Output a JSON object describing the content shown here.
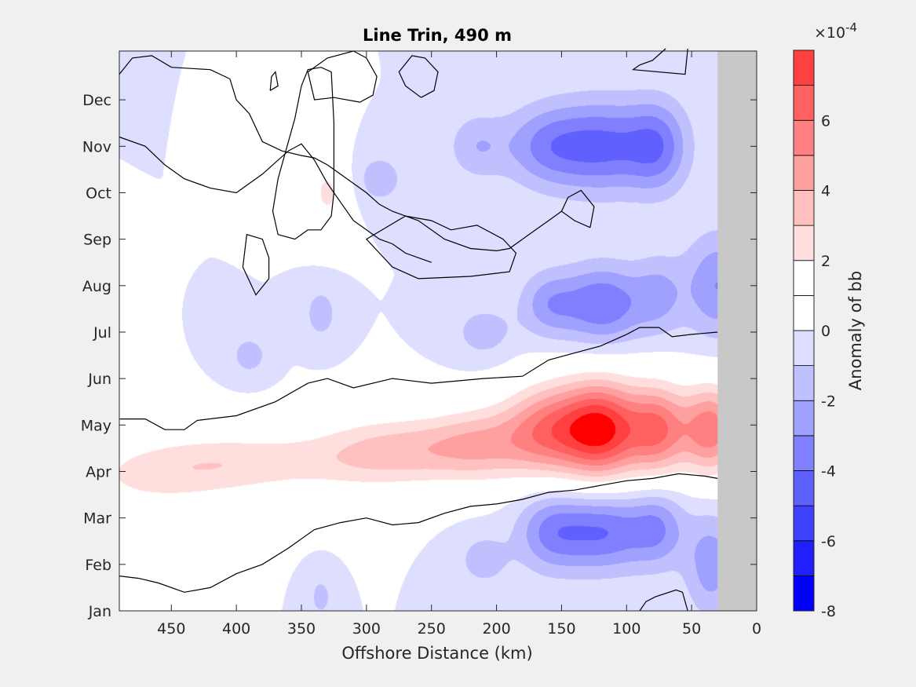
{
  "chart_data": {
    "type": "heatmap",
    "title": "Line Trin, 490 m",
    "xlabel": "Offshore Distance (km)",
    "ylabel": "",
    "xlim": [
      490,
      0
    ],
    "x_reversed": true,
    "x_ticks": [
      450,
      400,
      350,
      300,
      250,
      200,
      150,
      100,
      50,
      0
    ],
    "y_categories": [
      "Jan",
      "Feb",
      "Mar",
      "Apr",
      "May",
      "Jun",
      "Jul",
      "Aug",
      "Sep",
      "Oct",
      "Nov",
      "Dec"
    ],
    "ylim": [
      1,
      13.05
    ],
    "land_mask_from_km": 30,
    "colorbar": {
      "label": "Anomaly of bb",
      "exponent_label": "×10",
      "exponent": "-4",
      "range": [
        -8,
        8
      ],
      "ticks": [
        -8,
        -6,
        -4,
        -2,
        0,
        2,
        4,
        6
      ],
      "levels": [
        -8,
        -7,
        -6,
        -5,
        -4,
        -3,
        -2,
        -1,
        0,
        1,
        2,
        3,
        4,
        5,
        6,
        7,
        8
      ],
      "colors": [
        "#0000ff",
        "#2020ff",
        "#4040ff",
        "#6060ff",
        "#8080ff",
        "#a0a0ff",
        "#c0c0ff",
        "#dedeff",
        "#ffffff",
        "#ffffff",
        "#ffdede",
        "#ffc0c0",
        "#ffa0a0",
        "#ff8080",
        "#ff6060",
        "#ff4040",
        "#ff0000"
      ]
    },
    "anomaly_blobs": [
      {
        "x": 395,
        "month": 4.2,
        "sx": 60,
        "sy": 0.5,
        "amp": 2.4
      },
      {
        "x": 470,
        "month": 3.8,
        "sx": 50,
        "sy": 0.6,
        "amp": 1.6
      },
      {
        "x": 290,
        "month": 4.4,
        "sx": 40,
        "sy": 0.6,
        "amp": 2.3
      },
      {
        "x": 245,
        "month": 4.5,
        "sx": 40,
        "sy": 0.5,
        "amp": 1.6
      },
      {
        "x": 210,
        "month": 4.6,
        "sx": 28,
        "sy": 0.6,
        "amp": 2.7
      },
      {
        "x": 160,
        "month": 4.9,
        "sx": 24,
        "sy": 0.7,
        "amp": 5.0
      },
      {
        "x": 118,
        "month": 4.9,
        "sx": 22,
        "sy": 0.75,
        "amp": 7.6
      },
      {
        "x": 75,
        "month": 4.9,
        "sx": 16,
        "sy": 0.7,
        "amp": 5.2
      },
      {
        "x": 35,
        "month": 4.9,
        "sx": 16,
        "sy": 0.7,
        "amp": 5.6
      },
      {
        "x": 330,
        "month": 10.0,
        "sx": 12,
        "sy": 0.6,
        "amp": 2.2
      },
      {
        "x": 118,
        "month": 11.0,
        "sx": 32,
        "sy": 0.7,
        "amp": -4.2
      },
      {
        "x": 165,
        "month": 11.0,
        "sx": 22,
        "sy": 0.6,
        "amp": -2.2
      },
      {
        "x": 75,
        "month": 11.0,
        "sx": 16,
        "sy": 0.7,
        "amp": -2.6
      },
      {
        "x": 215,
        "month": 11.0,
        "sx": 16,
        "sy": 0.5,
        "amp": -1.8
      },
      {
        "x": 290,
        "month": 10.3,
        "sx": 14,
        "sy": 0.4,
        "amp": -1.6
      },
      {
        "x": 118,
        "month": 7.6,
        "sx": 22,
        "sy": 0.6,
        "amp": -3.9
      },
      {
        "x": 160,
        "month": 7.6,
        "sx": 16,
        "sy": 0.5,
        "amp": -2.4
      },
      {
        "x": 75,
        "month": 7.8,
        "sx": 14,
        "sy": 0.6,
        "amp": -2.0
      },
      {
        "x": 30,
        "month": 8.0,
        "sx": 18,
        "sy": 0.8,
        "amp": -3.0
      },
      {
        "x": 210,
        "month": 7.0,
        "sx": 16,
        "sy": 0.4,
        "amp": -1.6
      },
      {
        "x": 335,
        "month": 7.4,
        "sx": 9,
        "sy": 0.4,
        "amp": -1.6
      },
      {
        "x": 390,
        "month": 6.5,
        "sx": 10,
        "sy": 0.3,
        "amp": -1.6
      },
      {
        "x": 118,
        "month": 2.7,
        "sx": 28,
        "sy": 0.6,
        "amp": -4.0
      },
      {
        "x": 160,
        "month": 2.7,
        "sx": 18,
        "sy": 0.6,
        "amp": -2.4
      },
      {
        "x": 75,
        "month": 2.8,
        "sx": 14,
        "sy": 0.6,
        "amp": -2.2
      },
      {
        "x": 210,
        "month": 2.1,
        "sx": 14,
        "sy": 0.4,
        "amp": -1.6
      },
      {
        "x": 35,
        "month": 2.0,
        "sx": 14,
        "sy": 0.8,
        "amp": -2.6
      },
      {
        "x": 335,
        "month": 1.3,
        "sx": 6,
        "sy": 0.3,
        "amp": -1.5
      }
    ],
    "zero_contours": [
      [
        [
          490,
          5.13
        ],
        [
          470,
          5.13
        ],
        [
          455,
          4.9
        ],
        [
          440,
          4.9
        ],
        [
          430,
          5.1
        ],
        [
          400,
          5.2
        ],
        [
          370,
          5.5
        ],
        [
          345,
          5.9
        ],
        [
          330,
          6.0
        ],
        [
          310,
          5.8
        ],
        [
          280,
          6.0
        ],
        [
          250,
          5.9
        ],
        [
          210,
          6.0
        ],
        [
          180,
          6.05
        ],
        [
          160,
          6.4
        ],
        [
          140,
          6.55
        ],
        [
          120,
          6.7
        ],
        [
          100,
          6.95
        ],
        [
          90,
          7.1
        ],
        [
          75,
          7.1
        ],
        [
          65,
          6.9
        ],
        [
          50,
          6.95
        ],
        [
          30,
          7.0
        ]
      ],
      [
        [
          490,
          1.75
        ],
        [
          475,
          1.7
        ],
        [
          460,
          1.6
        ],
        [
          440,
          1.4
        ],
        [
          420,
          1.5
        ],
        [
          400,
          1.8
        ],
        [
          380,
          2.0
        ],
        [
          360,
          2.35
        ],
        [
          340,
          2.75
        ],
        [
          320,
          2.9
        ],
        [
          300,
          3.0
        ],
        [
          280,
          2.85
        ],
        [
          260,
          2.9
        ],
        [
          240,
          3.1
        ],
        [
          220,
          3.25
        ],
        [
          200,
          3.3
        ],
        [
          180,
          3.4
        ],
        [
          160,
          3.55
        ],
        [
          140,
          3.6
        ],
        [
          120,
          3.7
        ],
        [
          100,
          3.8
        ],
        [
          80,
          3.85
        ],
        [
          60,
          3.95
        ],
        [
          40,
          3.9
        ],
        [
          30,
          3.85
        ]
      ],
      [
        [
          490,
          12.55
        ],
        [
          480,
          12.9
        ],
        [
          465,
          12.95
        ],
        [
          450,
          12.7
        ],
        [
          420,
          12.65
        ],
        [
          405,
          12.45
        ],
        [
          400,
          12.0
        ],
        [
          390,
          11.7
        ],
        [
          380,
          11.1
        ],
        [
          365,
          10.9
        ],
        [
          350,
          10.8
        ],
        [
          340,
          10.75
        ],
        [
          330,
          10.6
        ],
        [
          320,
          10.4
        ],
        [
          310,
          10.2
        ],
        [
          300,
          10.0
        ],
        [
          290,
          9.75
        ],
        [
          280,
          9.6
        ],
        [
          260,
          9.4
        ],
        [
          240,
          9.0
        ],
        [
          220,
          8.8
        ],
        [
          200,
          8.75
        ],
        [
          190,
          8.8
        ],
        [
          180,
          9.0
        ],
        [
          170,
          9.2
        ],
        [
          160,
          9.4
        ],
        [
          150,
          9.6
        ]
      ],
      [
        [
          490,
          11.2
        ],
        [
          470,
          11.0
        ],
        [
          455,
          10.6
        ],
        [
          440,
          10.3
        ],
        [
          420,
          10.1
        ],
        [
          400,
          10.0
        ],
        [
          380,
          10.4
        ],
        [
          360,
          10.9
        ],
        [
          350,
          11.05
        ],
        [
          340,
          10.7
        ],
        [
          330,
          10.2
        ],
        [
          320,
          9.8
        ],
        [
          310,
          9.4
        ],
        [
          300,
          9.2
        ],
        [
          290,
          9.0
        ],
        [
          280,
          8.9
        ],
        [
          270,
          8.7
        ],
        [
          260,
          8.6
        ],
        [
          250,
          8.5
        ]
      ],
      [
        [
          345,
          9.2
        ],
        [
          355,
          9.0
        ],
        [
          368,
          9.1
        ],
        [
          372,
          9.6
        ],
        [
          368,
          10.3
        ],
        [
          355,
          11.6
        ],
        [
          350,
          12.3
        ],
        [
          345,
          12.65
        ],
        [
          335,
          12.7
        ],
        [
          327,
          12.6
        ],
        [
          325,
          11.5
        ],
        [
          325,
          10.0
        ],
        [
          327,
          9.5
        ],
        [
          335,
          9.2
        ],
        [
          345,
          9.2
        ]
      ],
      [
        [
          375,
          8.15
        ],
        [
          385,
          7.8
        ],
        [
          395,
          8.4
        ],
        [
          392,
          9.1
        ],
        [
          380,
          9.0
        ],
        [
          375,
          8.6
        ],
        [
          375,
          8.15
        ]
      ],
      [
        [
          260,
          8.15
        ],
        [
          280,
          8.4
        ],
        [
          300,
          9.0
        ],
        [
          270,
          9.5
        ],
        [
          250,
          9.4
        ],
        [
          235,
          9.2
        ],
        [
          215,
          9.3
        ],
        [
          195,
          9.0
        ],
        [
          185,
          8.7
        ],
        [
          190,
          8.3
        ],
        [
          220,
          8.2
        ],
        [
          260,
          8.15
        ]
      ],
      [
        [
          305,
          11.95
        ],
        [
          325,
          12.05
        ],
        [
          340,
          12.0
        ],
        [
          345,
          12.6
        ],
        [
          330,
          12.9
        ],
        [
          310,
          13.05
        ],
        [
          300,
          12.9
        ],
        [
          292,
          12.5
        ],
        [
          295,
          12.1
        ],
        [
          305,
          11.95
        ]
      ],
      [
        [
          258,
          12.05
        ],
        [
          270,
          12.3
        ],
        [
          275,
          12.6
        ],
        [
          265,
          12.95
        ],
        [
          255,
          12.9
        ],
        [
          245,
          12.6
        ],
        [
          248,
          12.2
        ],
        [
          258,
          12.05
        ]
      ],
      [
        [
          128,
          9.25
        ],
        [
          140,
          9.4
        ],
        [
          150,
          9.6
        ],
        [
          145,
          9.9
        ],
        [
          135,
          10.05
        ],
        [
          125,
          9.7
        ],
        [
          128,
          9.25
        ]
      ],
      [
        [
          70,
          13.1
        ],
        [
          80,
          12.85
        ],
        [
          90,
          12.75
        ],
        [
          95,
          12.65
        ],
        [
          55,
          12.55
        ],
        [
          53,
          13.1
        ]
      ],
      [
        [
          90,
          1.0
        ],
        [
          85,
          1.2
        ],
        [
          78,
          1.3
        ],
        [
          62,
          1.45
        ],
        [
          57,
          1.4
        ],
        [
          53,
          1.0
        ]
      ],
      [
        [
          374,
          12.2
        ],
        [
          373,
          12.5
        ],
        [
          370,
          12.6
        ],
        [
          368,
          12.3
        ],
        [
          374,
          12.2
        ]
      ]
    ]
  }
}
